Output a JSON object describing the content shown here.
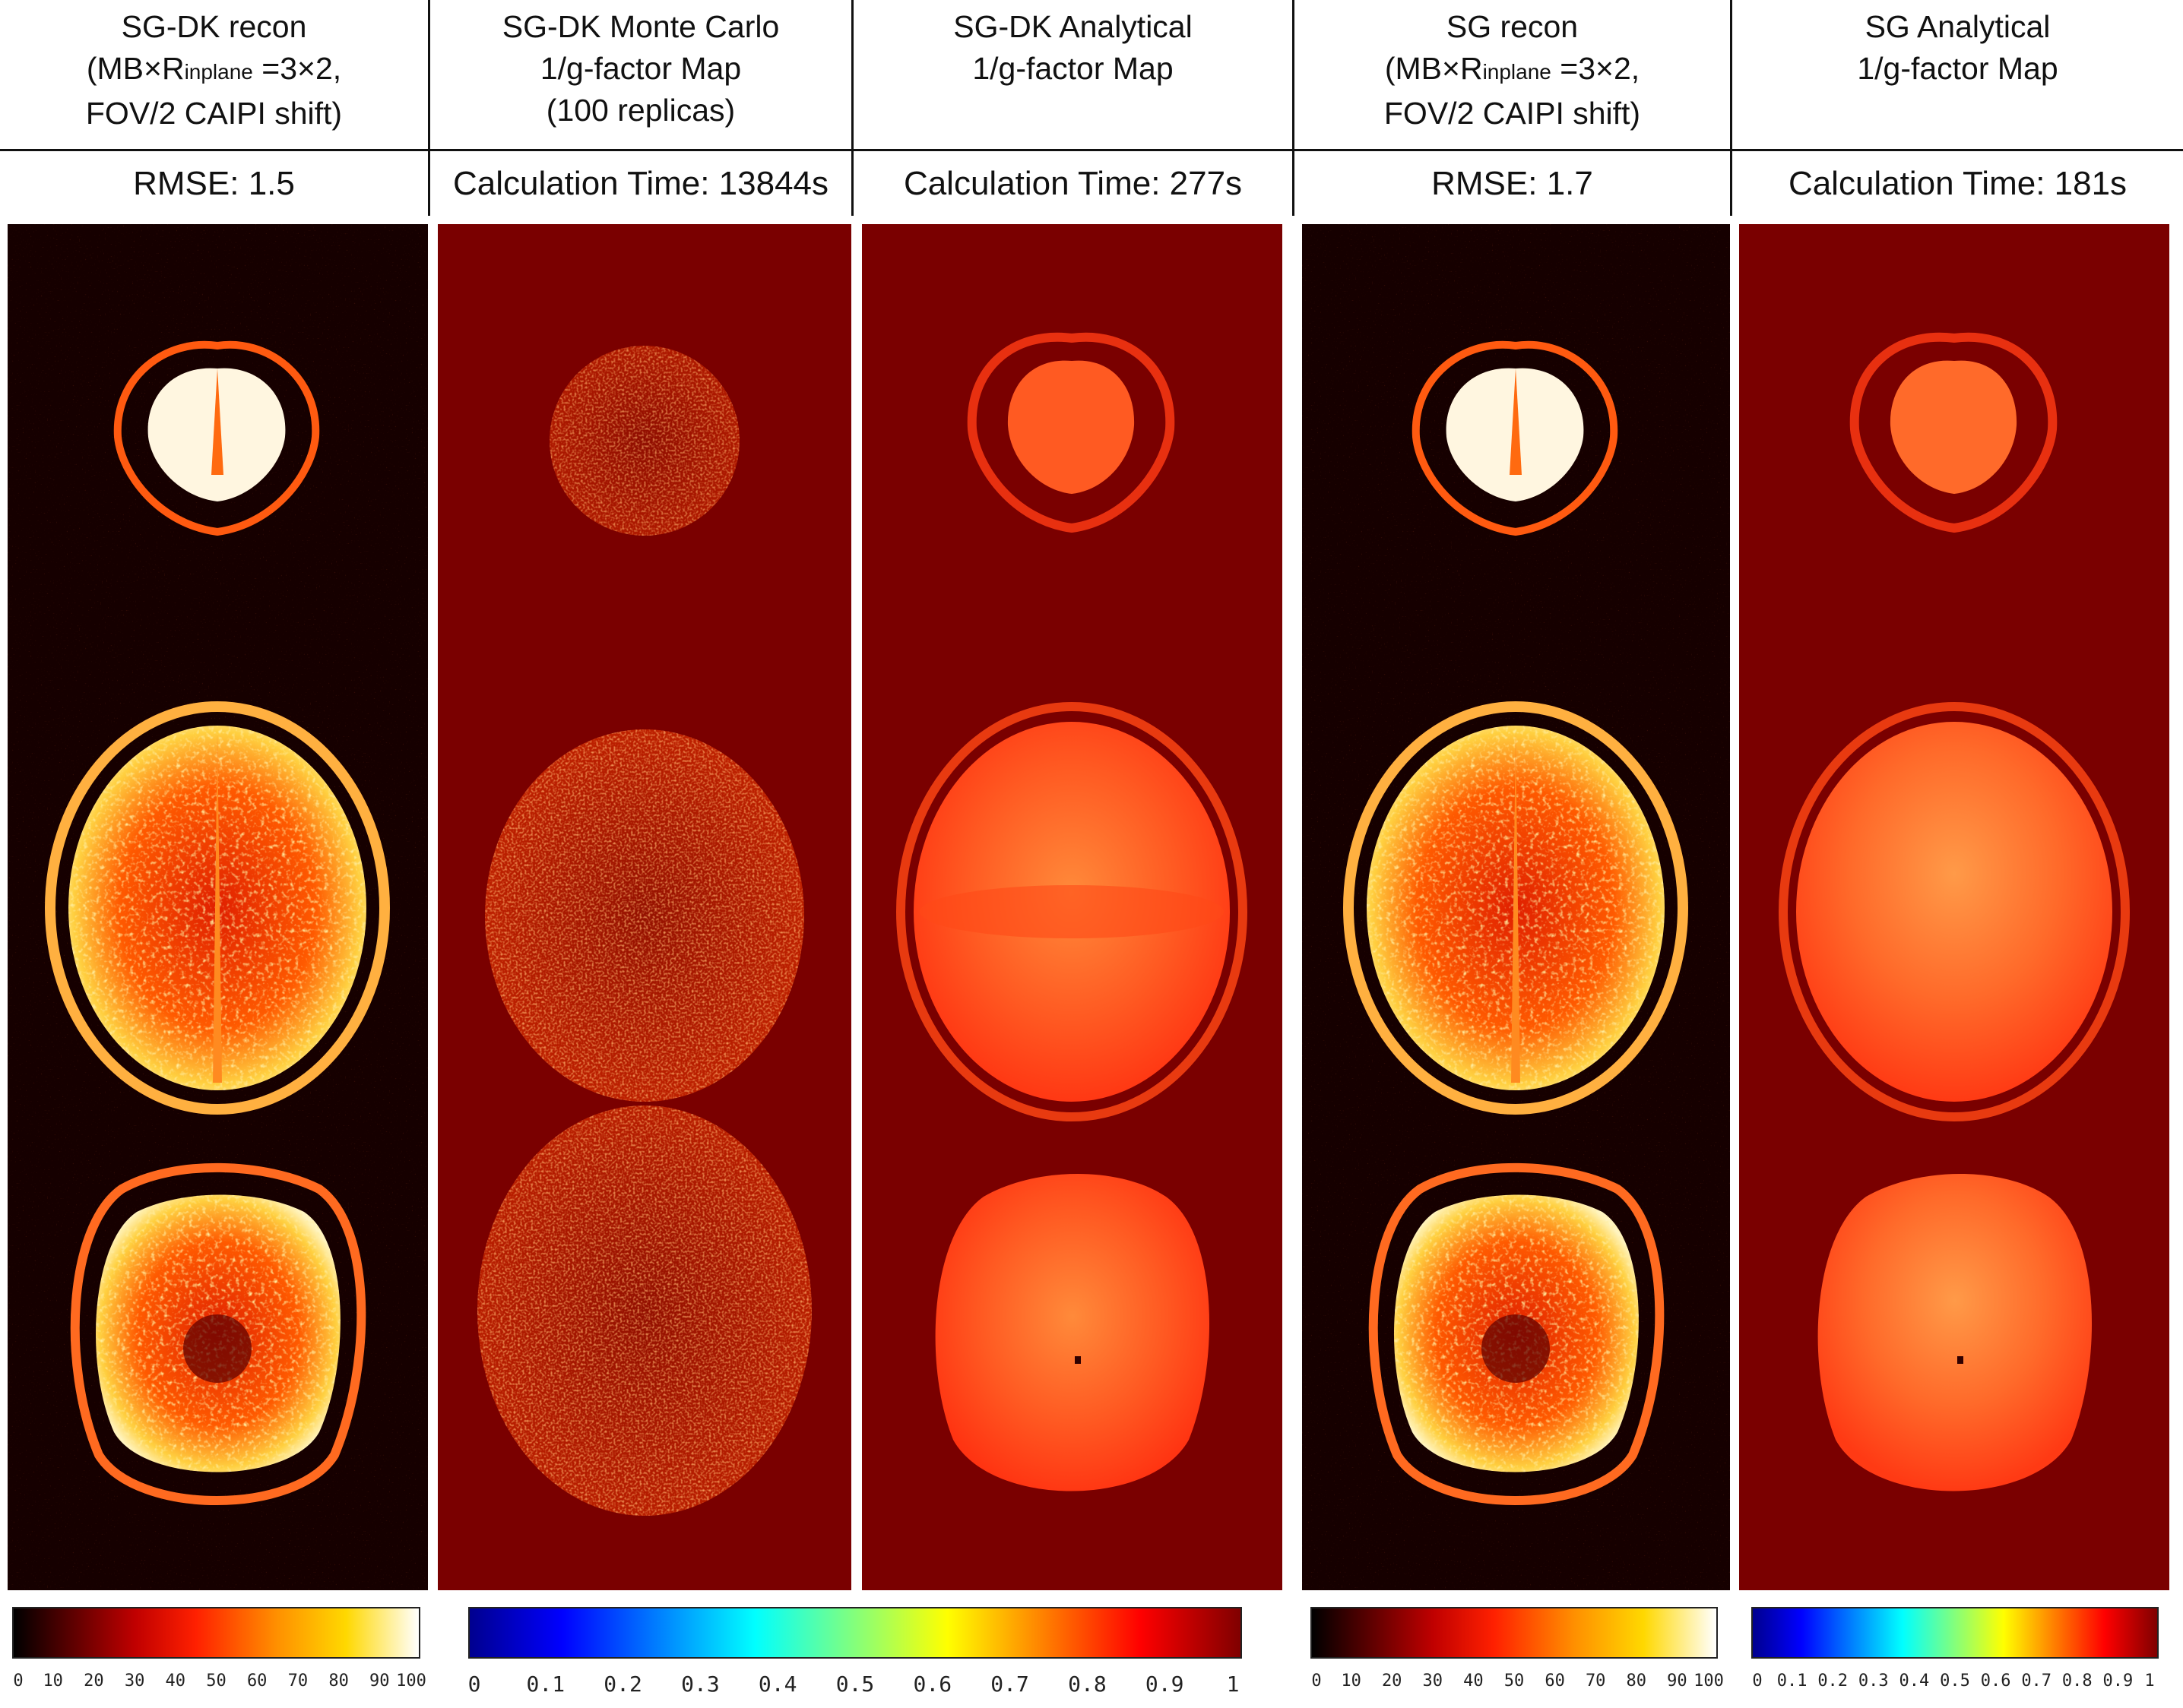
{
  "columns": [
    {
      "title_lines": [
        "SG-DK recon",
        "(MB×R",
        "inplane",
        " =3×2,",
        "FOV/2 CAIPI shift)"
      ],
      "stat": "RMSE: 1.5",
      "type": "recon"
    },
    {
      "title_lines": [
        "SG-DK Monte Carlo",
        "1/g-factor Map",
        "(100 replicas)"
      ],
      "stat": "Calculation Time: 13844s",
      "type": "montecarlo"
    },
    {
      "title_lines": [
        "SG-DK Analytical",
        "1/g-factor Map"
      ],
      "stat": "Calculation Time: 277s",
      "type": "analytical"
    },
    {
      "title_lines": [
        "SG recon",
        "(MB×R",
        "inplane",
        " =3×2,",
        "FOV/2 CAIPI shift)"
      ],
      "stat": "RMSE: 1.7",
      "type": "recon"
    },
    {
      "title_lines": [
        "SG Analytical",
        "1/g-factor Map"
      ],
      "stat": "Calculation Time: 181s",
      "type": "analytical"
    }
  ],
  "colorbars": [
    {
      "type": "hot",
      "ticks": [
        "0",
        "10",
        "20",
        "30",
        "40",
        "50",
        "60",
        "70",
        "80",
        "90",
        "100"
      ]
    },
    {
      "type": "jet",
      "ticks": [
        "0",
        "0.1",
        "0.2",
        "0.3",
        "0.4",
        "0.5",
        "0.6",
        "0.7",
        "0.8",
        "0.9",
        "1"
      ]
    },
    {
      "type": "hot",
      "ticks": [
        "0",
        "10",
        "20",
        "30",
        "40",
        "50",
        "60",
        "70",
        "80",
        "90",
        "100"
      ]
    },
    {
      "type": "jet",
      "ticks": [
        "0",
        "0.1",
        "0.2",
        "0.3",
        "0.4",
        "0.5",
        "0.6",
        "0.7",
        "0.8",
        "0.9",
        "1"
      ]
    }
  ],
  "colors": {
    "recon_background": "#160000",
    "map_background": "#7a0000",
    "analytical_fill": "#ff4a14",
    "recon_fill": "#ffd060"
  }
}
